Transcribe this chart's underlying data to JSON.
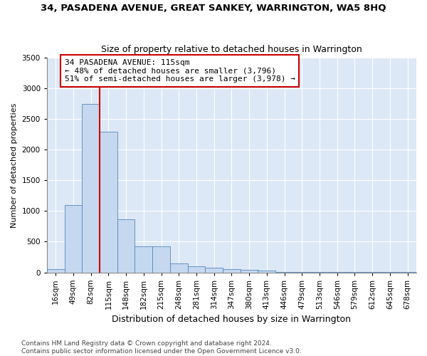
{
  "title": "34, PASADENA AVENUE, GREAT SANKEY, WARRINGTON, WA5 8HQ",
  "subtitle": "Size of property relative to detached houses in Warrington",
  "xlabel": "Distribution of detached houses by size in Warrington",
  "ylabel": "Number of detached properties",
  "categories": [
    "16sqm",
    "49sqm",
    "82sqm",
    "115sqm",
    "148sqm",
    "182sqm",
    "215sqm",
    "248sqm",
    "281sqm",
    "314sqm",
    "347sqm",
    "380sqm",
    "413sqm",
    "446sqm",
    "479sqm",
    "513sqm",
    "546sqm",
    "579sqm",
    "612sqm",
    "645sqm",
    "678sqm"
  ],
  "values": [
    50,
    1100,
    2750,
    2300,
    870,
    420,
    420,
    150,
    100,
    80,
    55,
    40,
    30,
    10,
    5,
    3,
    2,
    2,
    1,
    1,
    1
  ],
  "bar_color": "#c5d8f0",
  "bar_edge_color": "#5588bb",
  "vline_x_idx": 3,
  "vline_color": "#cc0000",
  "annotation_text": "34 PASADENA AVENUE: 115sqm\n← 48% of detached houses are smaller (3,796)\n51% of semi-detached houses are larger (3,978) →",
  "annotation_box_facecolor": "#ffffff",
  "annotation_box_edgecolor": "#cc0000",
  "ylim": [
    0,
    3500
  ],
  "yticks": [
    0,
    500,
    1000,
    1500,
    2000,
    2500,
    3000,
    3500
  ],
  "title_fontsize": 9.5,
  "subtitle_fontsize": 9,
  "xlabel_fontsize": 9,
  "ylabel_fontsize": 8,
  "tick_fontsize": 7.5,
  "annotation_fontsize": 8,
  "footer_text": "Contains HM Land Registry data © Crown copyright and database right 2024.\nContains public sector information licensed under the Open Government Licence v3.0.",
  "footer_fontsize": 6.5
}
